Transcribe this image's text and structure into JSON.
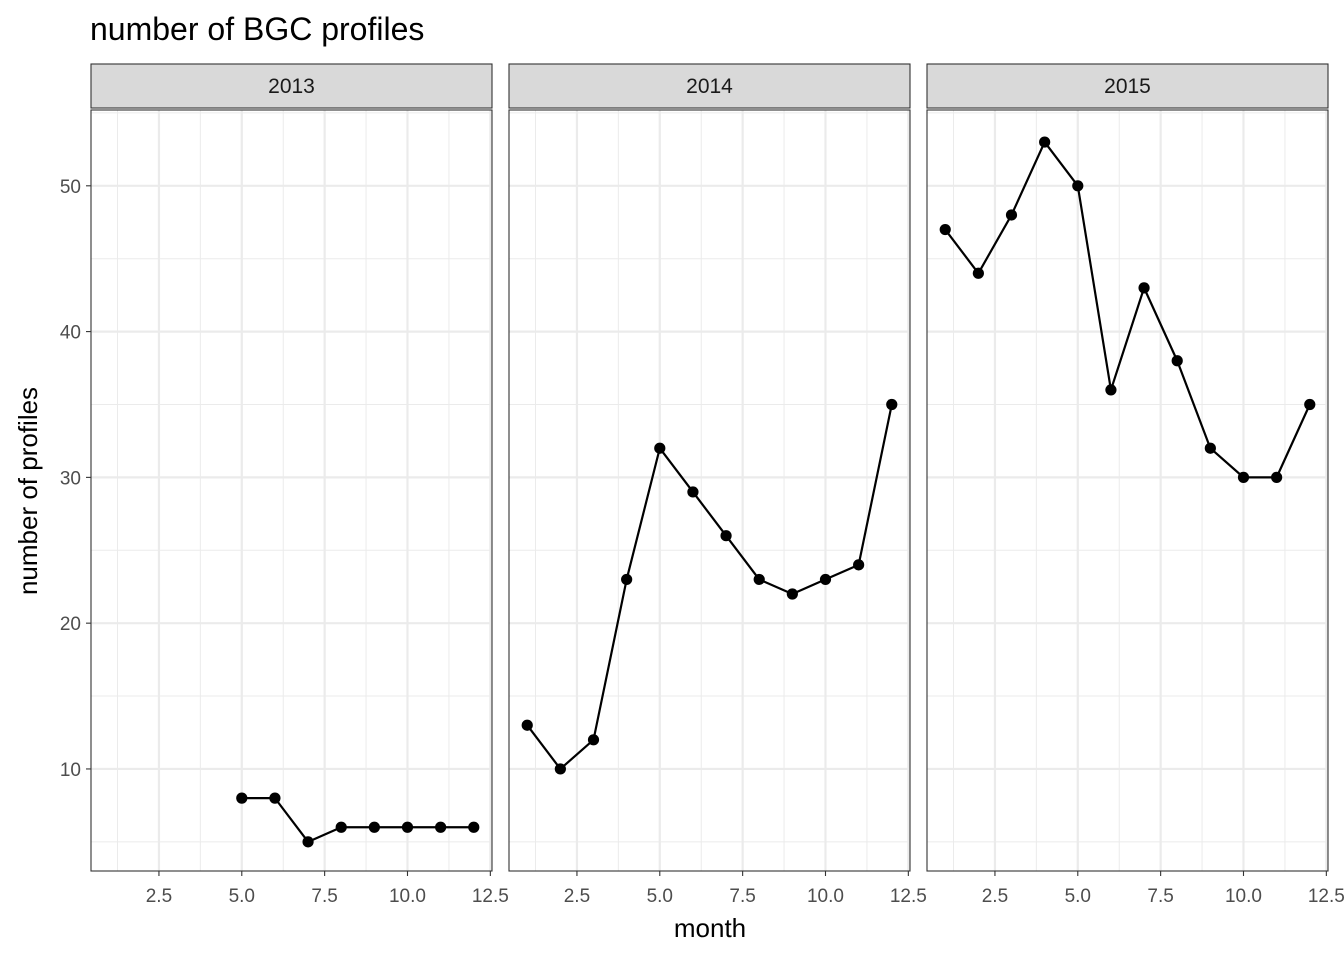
{
  "chart_data": {
    "type": "line",
    "title": "number of BGC profiles",
    "xlabel": "month",
    "ylabel": "number of profiles",
    "xlim": [
      0.45,
      12.55
    ],
    "ylim": [
      3.0,
      55.2
    ],
    "x_ticks": [
      2.5,
      5.0,
      7.5,
      10.0,
      12.5
    ],
    "x_tick_labels": [
      "2.5",
      "5.0",
      "7.5",
      "10.0",
      "12.5"
    ],
    "y_ticks": [
      10,
      20,
      30,
      40,
      50
    ],
    "y_tick_labels": [
      "10",
      "20",
      "30",
      "40",
      "50"
    ],
    "grid": true,
    "markers": "points",
    "facets": [
      {
        "label": "2013",
        "x": [
          5,
          6,
          7,
          8,
          9,
          10,
          11,
          12
        ],
        "y": [
          8,
          8,
          5,
          6,
          6,
          6,
          6,
          6
        ]
      },
      {
        "label": "2014",
        "x": [
          1,
          2,
          3,
          4,
          5,
          6,
          7,
          8,
          9,
          10,
          11,
          12
        ],
        "y": [
          13,
          10,
          12,
          23,
          32,
          29,
          26,
          23,
          22,
          23,
          24,
          35
        ]
      },
      {
        "label": "2015",
        "x": [
          1,
          2,
          3,
          4,
          5,
          6,
          7,
          8,
          9,
          10,
          11,
          12
        ],
        "y": [
          47,
          44,
          48,
          53,
          50,
          36,
          43,
          38,
          32,
          30,
          30,
          35
        ]
      }
    ]
  }
}
